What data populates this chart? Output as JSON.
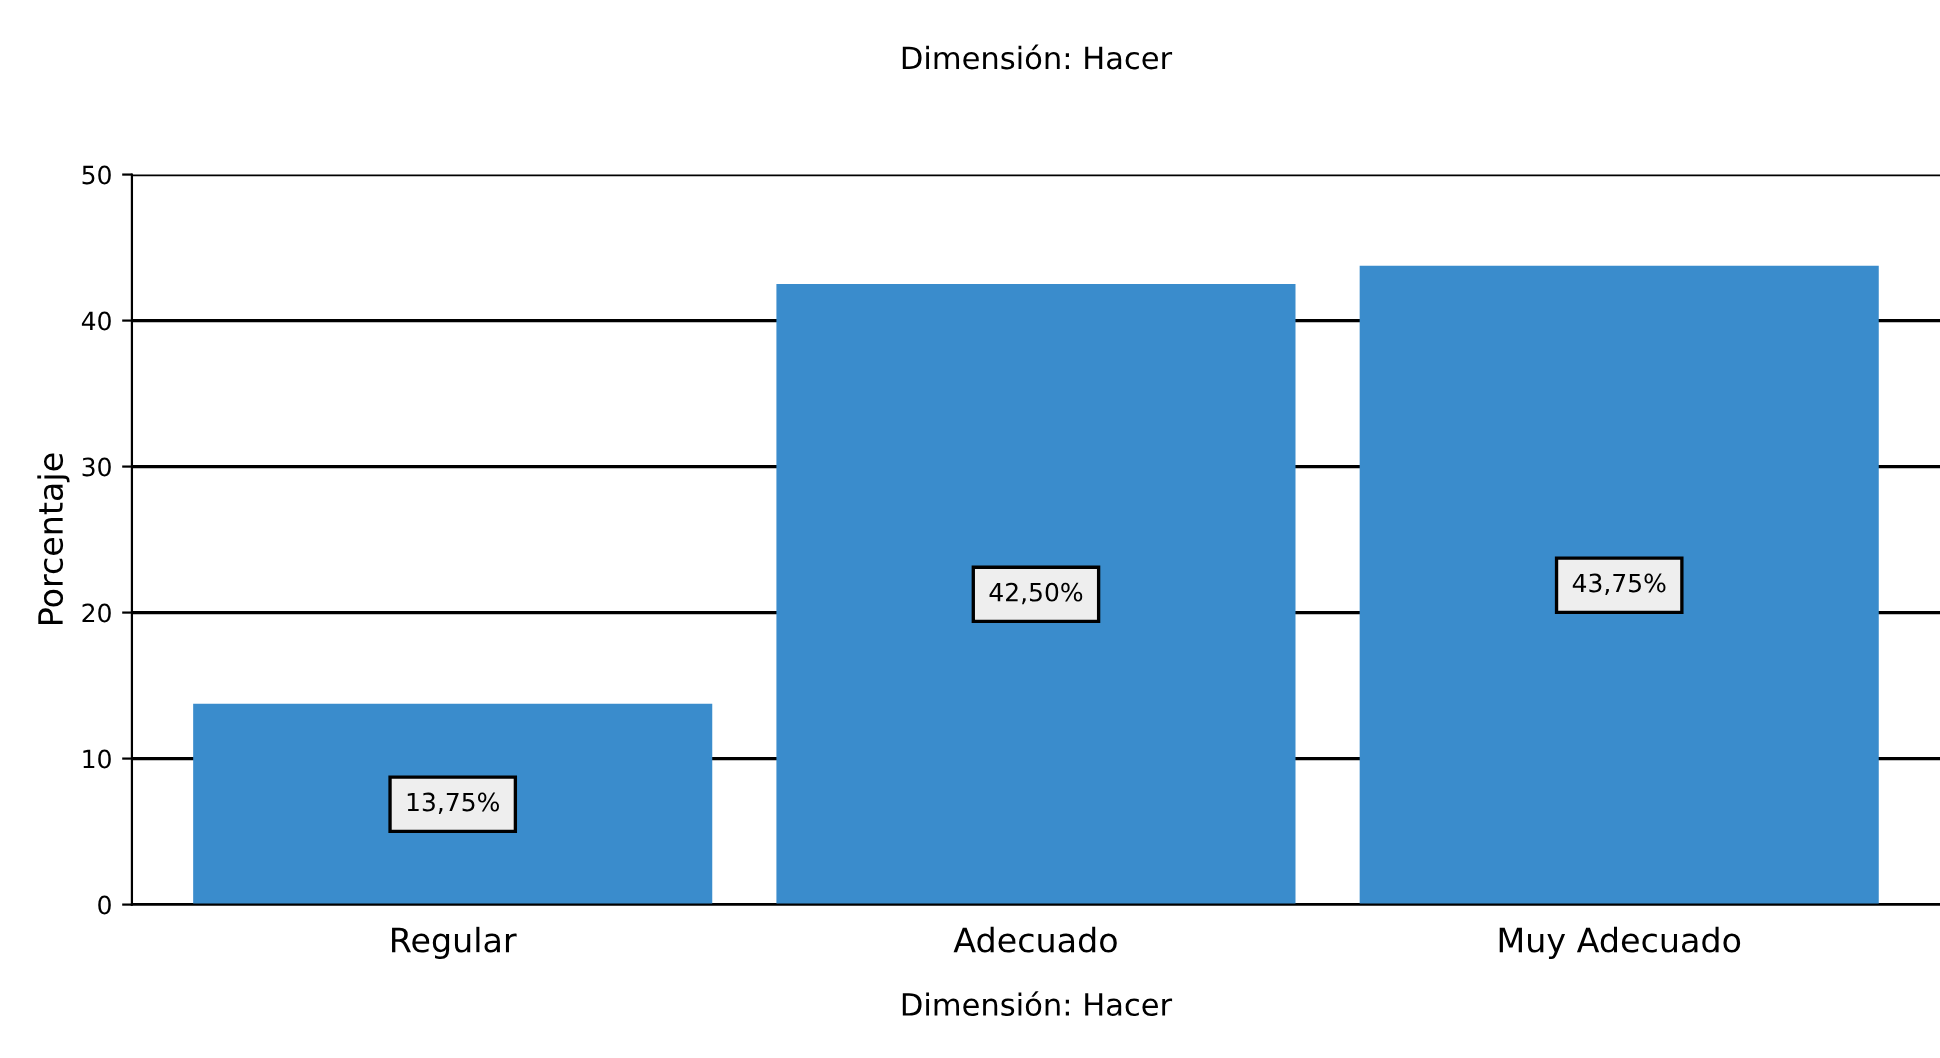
{
  "chart_data": {
    "type": "bar",
    "title": "Dimensión: Hacer",
    "xlabel": "Dimensión: Hacer",
    "ylabel": "Porcentaje",
    "categories": [
      "Regular",
      "Adecuado",
      "Muy Adecuado"
    ],
    "values": [
      13.75,
      42.5,
      43.75
    ],
    "color": "#3a8ccc",
    "value_labels": [
      "13,75%",
      "42,50%",
      "43,75%"
    ],
    "ylim": [
      0,
      50
    ],
    "yticks": [
      0,
      10,
      20,
      30,
      40,
      50
    ],
    "grid": "y",
    "legend": false
  }
}
